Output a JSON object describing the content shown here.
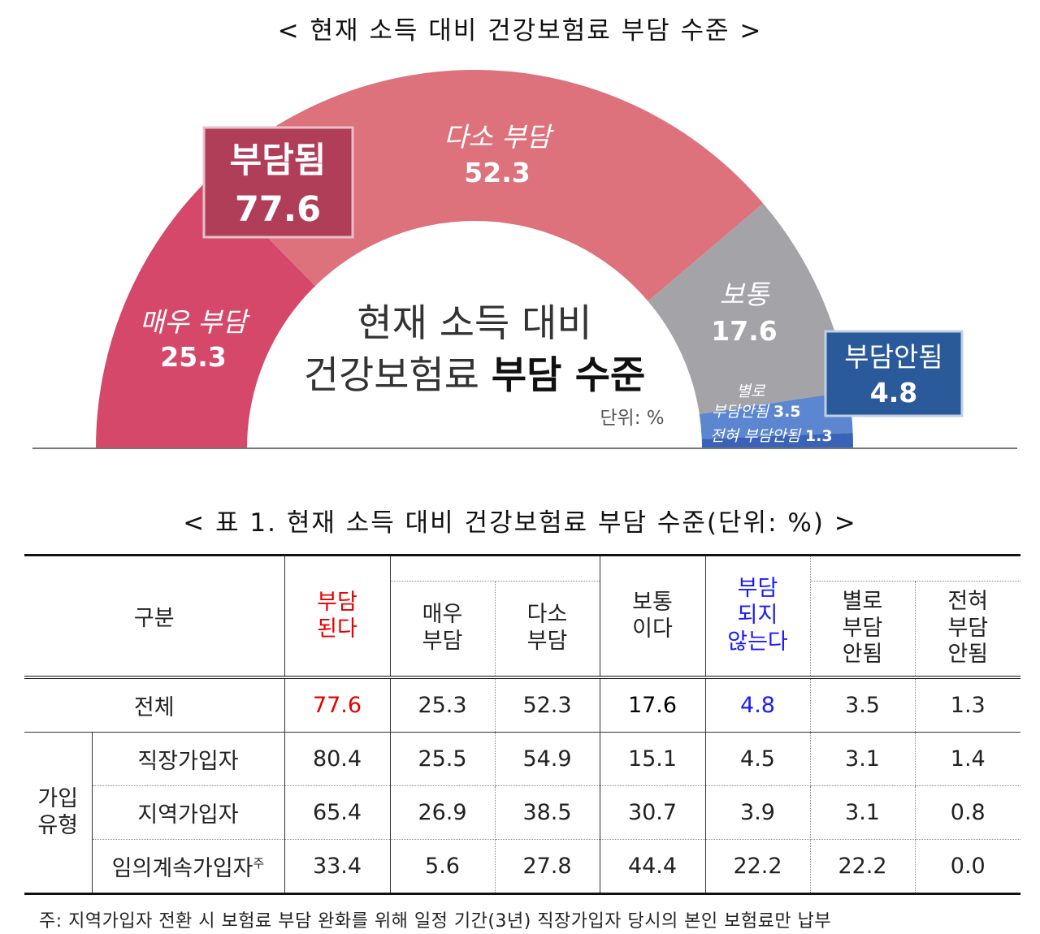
{
  "chart_title": "< 현재 소득 대비 건강보험료 부담 수준 >",
  "chart_data": {
    "type": "pie",
    "title": "현재 소득 대비 건강보험료 부담 수준",
    "center_label_line1": "현재 소득 대비",
    "center_label_line2_plain": "건강보험료 ",
    "center_label_line2_bold": "부담 수준",
    "unit_label": "단위: %",
    "slices": [
      {
        "name": "매우 부담",
        "value": 25.3,
        "color": "#d5486a"
      },
      {
        "name": "다소 부담",
        "value": 52.3,
        "color": "#dd727d"
      },
      {
        "name": "보통",
        "value": 17.6,
        "color": "#a3a3a8"
      },
      {
        "name": "별로 부담안됨",
        "value": 3.5,
        "color": "#5c86cf"
      },
      {
        "name": "전혀 부담안됨",
        "value": 1.3,
        "color": "#3a63b8"
      }
    ],
    "groups": [
      {
        "name": "부담됨",
        "value": 77.6,
        "color": "#b13e59"
      },
      {
        "name": "부담안됨",
        "value": 4.8,
        "color": "#2b5a9b"
      }
    ],
    "labels": {
      "very": "매우 부담",
      "very_val": "25.3",
      "some": "다소 부담",
      "some_val": "52.3",
      "normal": "보통",
      "normal_val": "17.6",
      "notmuch_1": "별로",
      "notmuch_2": "부담안됨",
      "notmuch_val": "3.5",
      "none": "전혀 부담안됨",
      "none_val": "1.3",
      "burden_group": "부담됨",
      "burden_group_val": "77.6",
      "noburden_group": "부담안됨",
      "noburden_group_val": "4.8"
    }
  },
  "table": {
    "title": "< 표 1. 현재 소득 대비 건강보험료 부담 수준(단위: %) >",
    "headers": {
      "category": "구분",
      "burden": [
        "부담",
        "된다"
      ],
      "very": [
        "매우",
        "부담"
      ],
      "some": [
        "다소",
        "부담"
      ],
      "normal": [
        "보통",
        "이다"
      ],
      "noburden": [
        "부담",
        "되지",
        "않는다"
      ],
      "notmuch": [
        "별로",
        "부담",
        "안됨"
      ],
      "none": [
        "전혀",
        "부담",
        "안됨"
      ]
    },
    "total": {
      "label": "전체",
      "values": [
        "77.6",
        "25.3",
        "52.3",
        "17.6",
        "4.8",
        "3.5",
        "1.3"
      ]
    },
    "group_label": [
      "가입",
      "유형"
    ],
    "rows": [
      {
        "label": "직장가입자",
        "sup": "",
        "values": [
          "80.4",
          "25.5",
          "54.9",
          "15.1",
          "4.5",
          "3.1",
          "1.4"
        ]
      },
      {
        "label": "지역가입자",
        "sup": "",
        "values": [
          "65.4",
          "26.9",
          "38.5",
          "30.7",
          "3.9",
          "3.1",
          "0.8"
        ]
      },
      {
        "label": "임의계속가입자",
        "sup": "주",
        "values": [
          "33.4",
          "5.6",
          "27.8",
          "44.4",
          "22.2",
          "22.2",
          "0.0"
        ]
      }
    ]
  },
  "footnote": "주: 지역가입자 전환 시 보험료 부담 완화를 위해 일정 기간(3년) 직장가입자 당시의 본인 보험료만 납부"
}
